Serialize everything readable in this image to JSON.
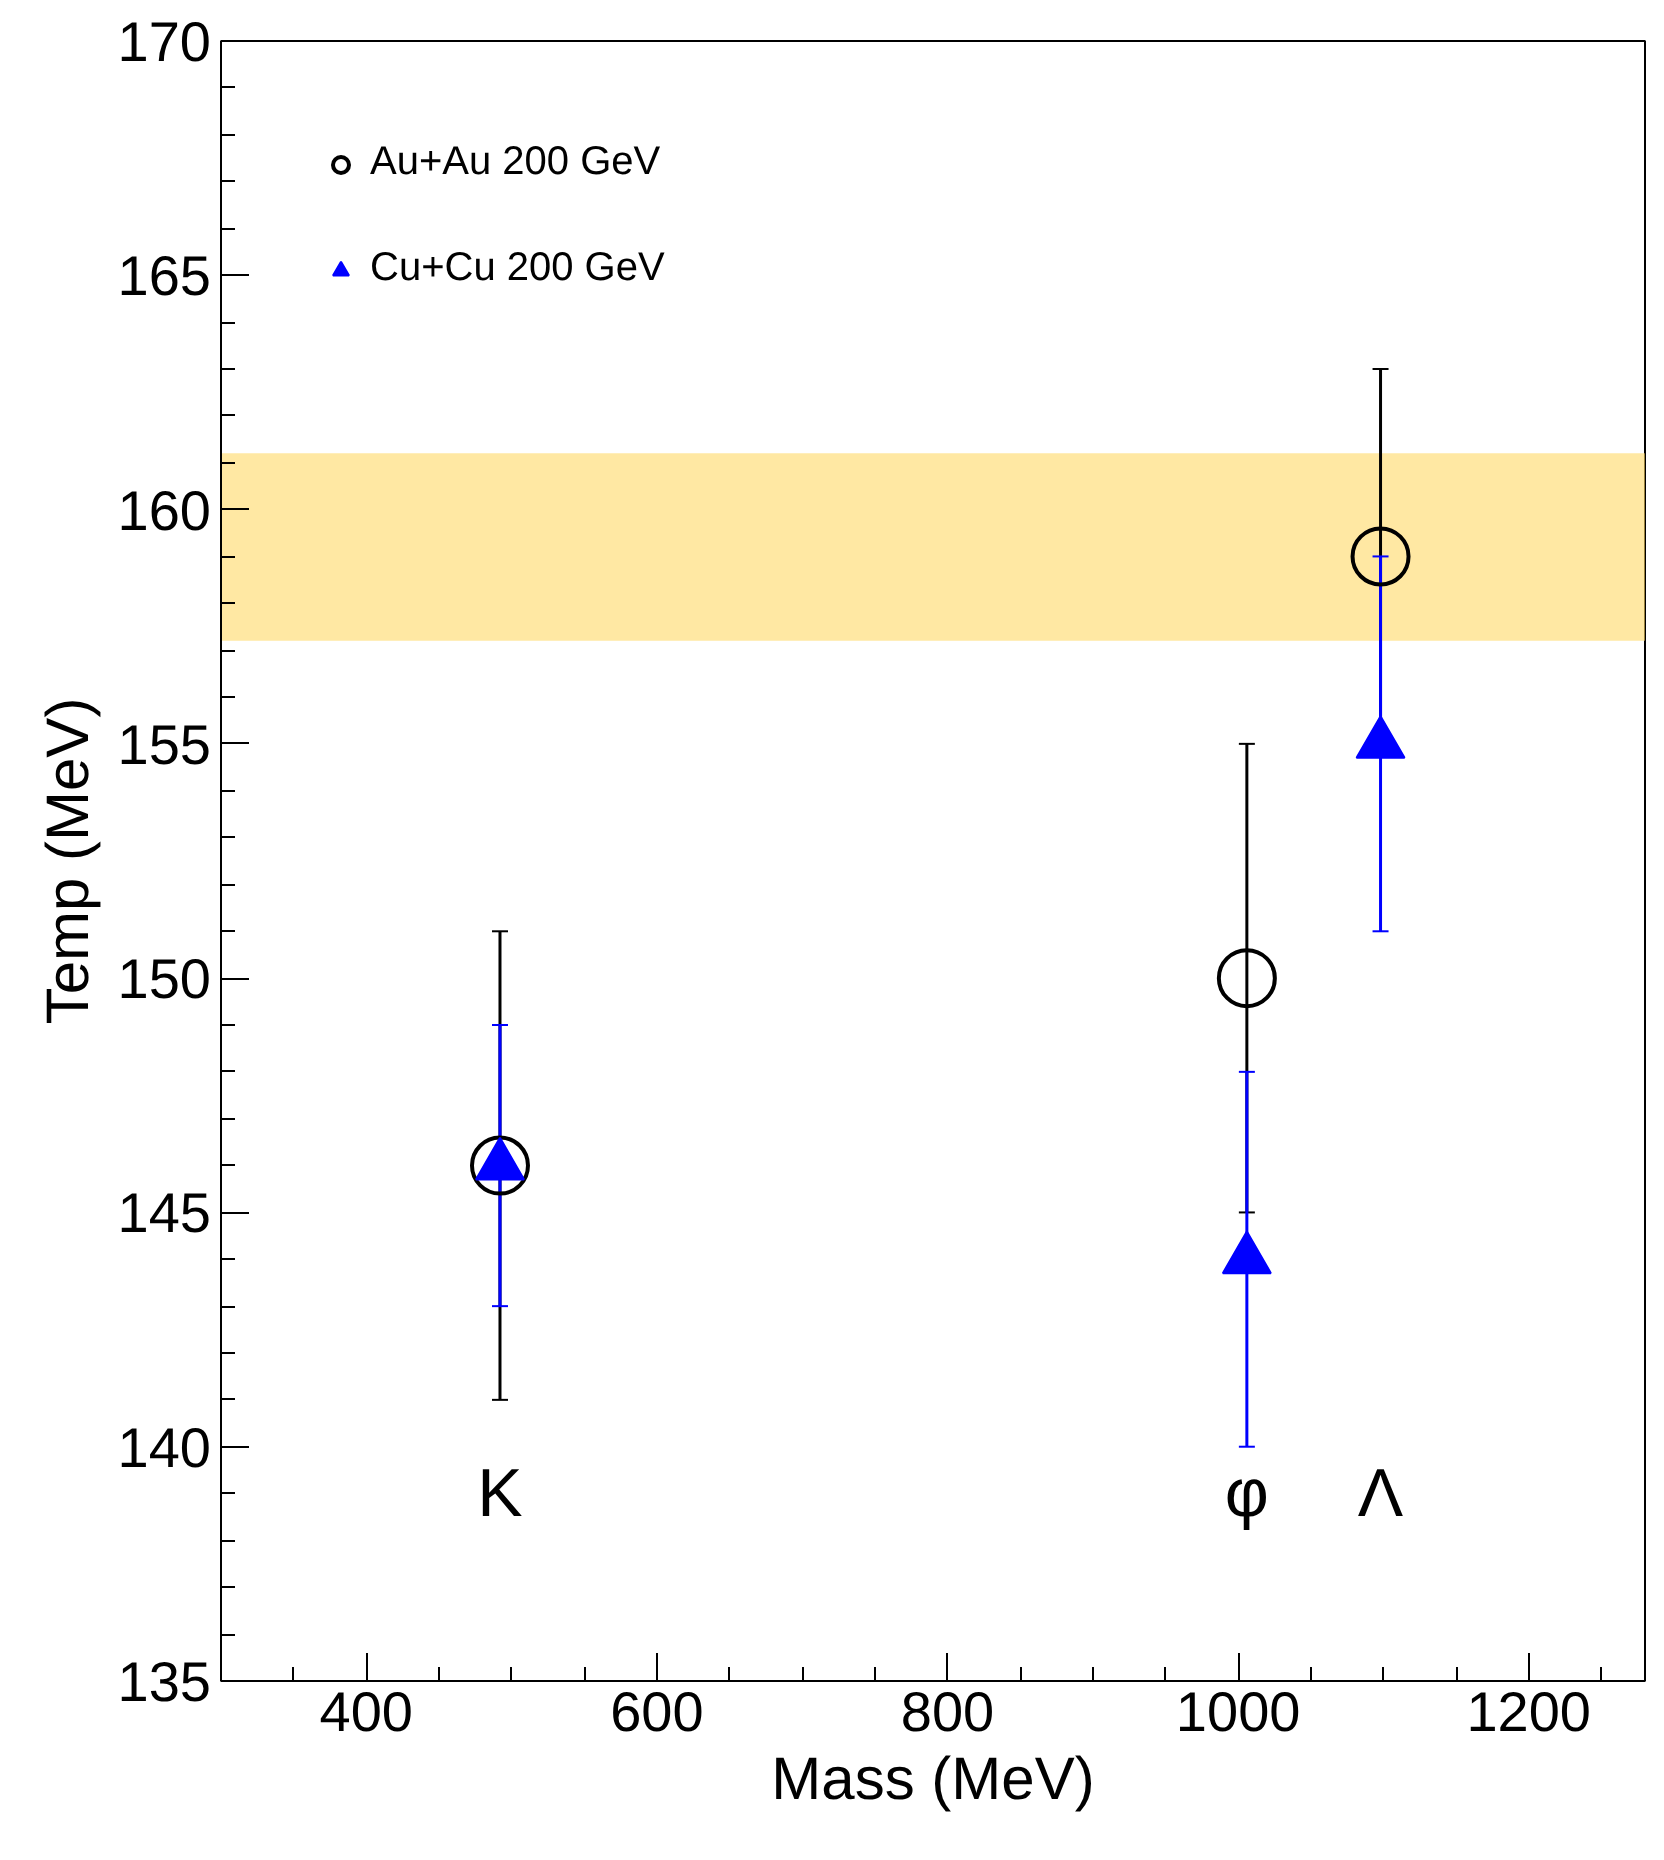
{
  "chart_data": {
    "type": "scatter",
    "xlabel": "Mass (MeV)",
    "ylabel": "Temp (MeV)",
    "xlim": [
      300,
      1280
    ],
    "ylim": [
      135,
      170
    ],
    "xticks": [
      400,
      600,
      800,
      1000,
      1200
    ],
    "yticks": [
      135,
      140,
      145,
      150,
      155,
      160,
      165,
      170
    ],
    "grid": false,
    "legend": "top left",
    "series": [
      {
        "name": "Au+Au 200 GeV",
        "color": "#000000",
        "marker": "circle",
        "x": [
          492,
          1006,
          1098
        ],
        "values": [
          146,
          150,
          159
        ],
        "errors": [
          5,
          5,
          4
        ]
      },
      {
        "name": "Cu+Cu 200 GeV",
        "color": "#0000ff",
        "marker": "triangle",
        "x": [
          492,
          1006,
          1098
        ],
        "values": [
          146,
          144,
          155
        ],
        "errors": [
          3,
          4,
          4
        ]
      }
    ],
    "bands": [
      {
        "axis": "y",
        "from": 157.2,
        "to": 161.2,
        "label": null,
        "color": "#ffd966"
      }
    ],
    "annotations": [
      "K",
      "φ",
      "Λ"
    ]
  }
}
